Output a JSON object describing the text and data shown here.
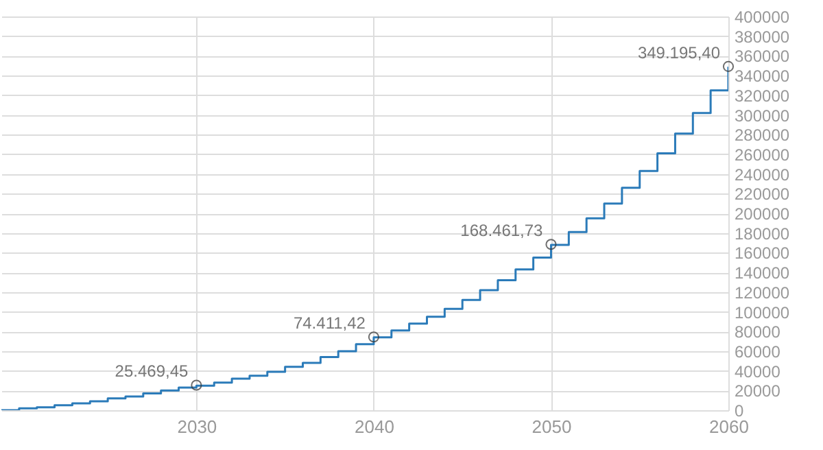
{
  "chart_data": {
    "type": "step",
    "x": [
      2019,
      2020,
      2021,
      2022,
      2023,
      2024,
      2025,
      2026,
      2027,
      2028,
      2029,
      2030,
      2031,
      2032,
      2033,
      2034,
      2035,
      2036,
      2037,
      2038,
      2039,
      2040,
      2041,
      2042,
      2043,
      2044,
      2045,
      2046,
      2047,
      2048,
      2049,
      2050,
      2051,
      2052,
      2053,
      2054,
      2055,
      2056,
      2057,
      2058,
      2059,
      2060
    ],
    "series": [
      {
        "color": "#2b7bb9",
        "values": [
          0,
          2000,
          3000,
          5000,
          7000,
          9000,
          12000,
          14000,
          17000,
          20000,
          23000,
          25000,
          28000,
          32000,
          35000,
          39000,
          44000,
          48000,
          54000,
          60000,
          67000,
          74000,
          81000,
          88000,
          95000,
          103000,
          112000,
          122000,
          132000,
          143000,
          155000,
          168000,
          181000,
          195000,
          210000,
          226000,
          243000,
          261000,
          281000,
          302000,
          325000,
          349000
        ]
      }
    ],
    "xlim": [
      2019,
      2060
    ],
    "xticks": [
      2030,
      2040,
      2050,
      2060
    ],
    "ylim": [
      0,
      400000
    ],
    "yticks": [
      0,
      20000,
      40000,
      60000,
      80000,
      100000,
      120000,
      140000,
      160000,
      180000,
      200000,
      220000,
      240000,
      260000,
      280000,
      300000,
      320000,
      340000,
      360000,
      380000,
      400000
    ],
    "grid": true,
    "marker": "none",
    "line_style": "solid",
    "annotations": [
      {
        "text": "25.469,45",
        "x": 2030,
        "y": 25469.45
      },
      {
        "text": "74.411,42",
        "x": 2040,
        "y": 74411.42
      },
      {
        "text": "168.461,73",
        "x": 2050,
        "y": 168461.73
      },
      {
        "text": "349.195,40",
        "x": 2060,
        "y": 349195.4
      }
    ]
  }
}
